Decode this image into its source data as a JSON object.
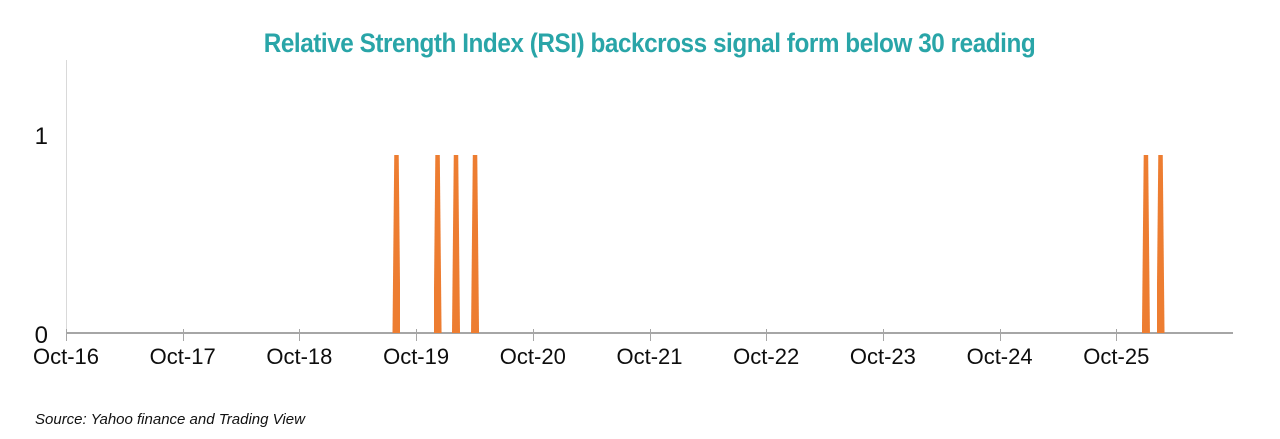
{
  "title": "Relative Strength Index (RSI) backcross signal form below 30 reading",
  "source_note": "Source: Yahoo finance and Trading View",
  "colors": {
    "title_teal": "#29a5a8",
    "bar_orange": "#ed7d31",
    "axis_gray": "#a6a6a6",
    "y_axis_light_gray": "#d9d9d9",
    "label_black": "#0d0d0d"
  },
  "chart_data": {
    "type": "bar",
    "title": "Relative Strength Index (RSI) backcross signal form below 30 reading",
    "xlabel": "",
    "ylabel": "",
    "x_tick_labels": [
      "Oct-16",
      "Oct-17",
      "Oct-18",
      "Oct-19",
      "Oct-20",
      "Oct-21",
      "Oct-22",
      "Oct-23",
      "Oct-24",
      "Oct-25"
    ],
    "y_tick_labels": [
      "0",
      "1"
    ],
    "ylim": [
      0,
      1.4
    ],
    "grid": false,
    "legend": "none",
    "bar_color": "#ed7d31",
    "signals": [
      {
        "approx_date": "Aug-19",
        "x_fraction": 0.2832,
        "value": 0.91
      },
      {
        "approx_date": "Dec-19",
        "x_fraction": 0.3184,
        "value": 0.91
      },
      {
        "approx_date": "Feb-20",
        "x_fraction": 0.3342,
        "value": 0.91
      },
      {
        "approx_date": "Apr-20",
        "x_fraction": 0.3505,
        "value": 0.91
      },
      {
        "approx_date": "Jan-26",
        "x_fraction": 0.9254,
        "value": 0.91
      },
      {
        "approx_date": "Feb-26",
        "x_fraction": 0.9379,
        "value": 0.91
      }
    ]
  }
}
